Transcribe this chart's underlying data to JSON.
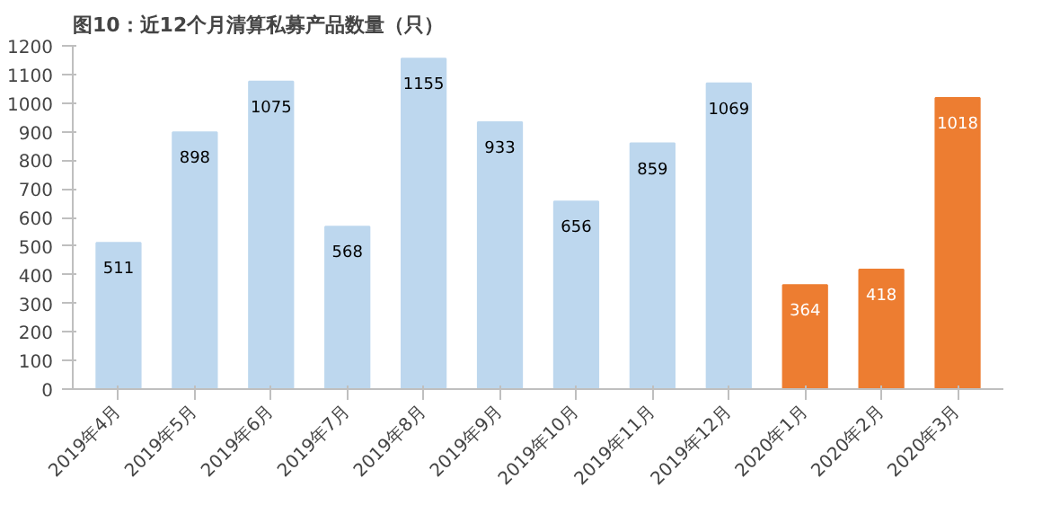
{
  "chart_data": {
    "type": "bar",
    "title": "图10：近12个月清算私募产品数量（只）",
    "categories": [
      "2019年4月",
      "2019年5月",
      "2019年6月",
      "2019年7月",
      "2019年8月",
      "2019年9月",
      "2019年10月",
      "2019年11月",
      "2019年12月",
      "2020年1月",
      "2020年2月",
      "2020年3月"
    ],
    "values": [
      511,
      898,
      1075,
      568,
      1155,
      933,
      656,
      859,
      1069,
      364,
      418,
      1018
    ],
    "colors": [
      "#bdd7ee",
      "#bdd7ee",
      "#bdd7ee",
      "#bdd7ee",
      "#bdd7ee",
      "#bdd7ee",
      "#bdd7ee",
      "#bdd7ee",
      "#bdd7ee",
      "#ed7d31",
      "#ed7d31",
      "#ed7d31"
    ],
    "ylim": [
      0,
      1200
    ],
    "yticks": [
      0,
      100,
      200,
      300,
      400,
      500,
      600,
      700,
      800,
      900,
      1000,
      1100,
      1200
    ],
    "data_labels": true,
    "grid": false
  }
}
